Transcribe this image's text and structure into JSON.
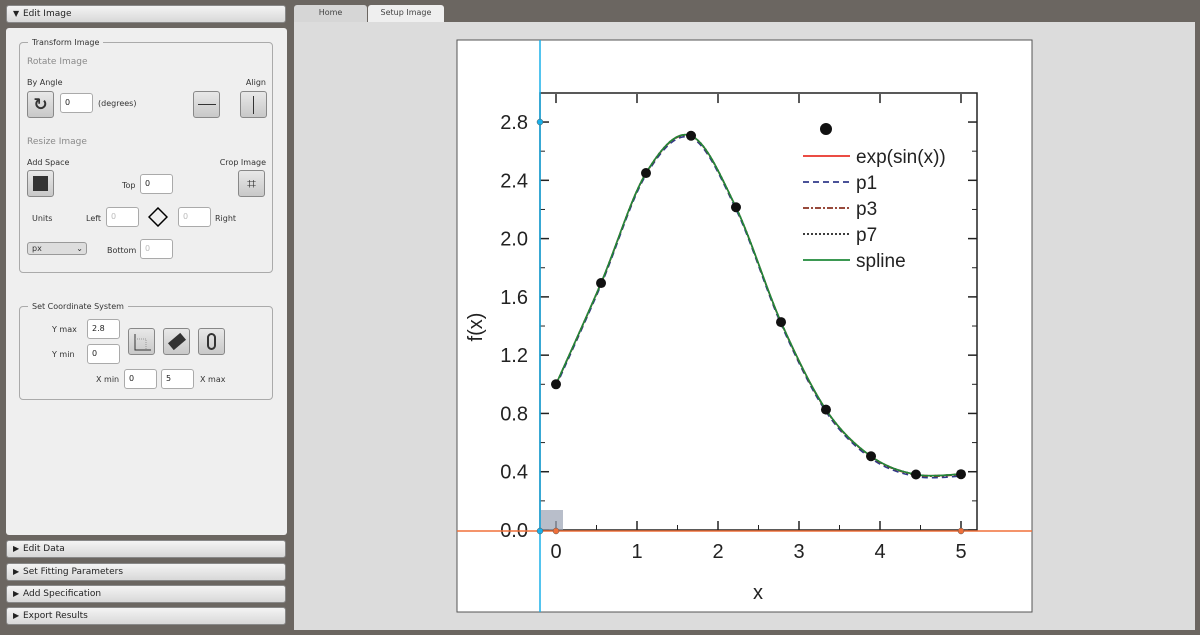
{
  "sidebar": {
    "sections": [
      {
        "label": "Edit Image",
        "expanded": true
      },
      {
        "label": "Edit Data",
        "expanded": false
      },
      {
        "label": "Set Fitting Parameters",
        "expanded": false
      },
      {
        "label": "Add Specification",
        "expanded": false
      },
      {
        "label": "Export Results",
        "expanded": false
      }
    ],
    "transform": {
      "title": "Transform Image",
      "rotate_title": "Rotate Image",
      "by_angle": "By Angle",
      "angle_value": "0",
      "degrees": "(degrees)",
      "align": "Align",
      "resize_title": "Resize Image",
      "add_space": "Add Space",
      "crop_image": "Crop Image",
      "top_label": "Top",
      "top_value": "0",
      "left_label": "Left",
      "left_value": "0",
      "right_label": "Right",
      "right_value": "0",
      "bottom_label": "Bottom",
      "bottom_value": "0",
      "units_label": "Units",
      "units_value": "px"
    },
    "coords": {
      "title": "Set Coordinate System",
      "ymax_label": "Y max",
      "ymax_value": "2.8",
      "ymin_label": "Y min",
      "ymin_value": "0",
      "xmin_label": "X min",
      "xmin_value": "0",
      "xmax_label": "X max",
      "xmax_value": "5"
    }
  },
  "tabs": [
    {
      "label": "Home",
      "active": false
    },
    {
      "label": "Setup Image",
      "active": true
    }
  ],
  "colors": {
    "y_axis_marker": "#1ab0ea",
    "x_axis_marker": "#f0703a"
  },
  "chart_data": {
    "type": "line",
    "xlabel": "x",
    "ylabel": "f(x)",
    "xlim": [
      -0.2,
      5.2
    ],
    "ylim": [
      0,
      2.8
    ],
    "xticks": [
      "0",
      "1",
      "2",
      "3",
      "4",
      "5"
    ],
    "yticks": [
      "0.0",
      "0.4",
      "0.8",
      "1.2",
      "1.6",
      "2.0",
      "2.4",
      "2.8"
    ],
    "legend_position": "top-right",
    "points": {
      "x": [
        0,
        0.556,
        1.111,
        1.667,
        2.222,
        2.778,
        3.333,
        3.889,
        4.444,
        5.0
      ],
      "y": [
        1.0,
        1.695,
        2.45,
        2.706,
        2.215,
        1.427,
        0.826,
        0.506,
        0.381,
        0.383
      ]
    },
    "series": [
      {
        "name": "exp(sin(x))",
        "color": "#e8322a",
        "dash": ""
      },
      {
        "name": "p1",
        "color": "#303a8a",
        "dash": "6,4"
      },
      {
        "name": "p3",
        "color": "#8a3020",
        "dash": "6,2,2,2"
      },
      {
        "name": "p7",
        "color": "#222222",
        "dash": "2,2"
      },
      {
        "name": "spline",
        "color": "#1f8a3a",
        "dash": ""
      }
    ]
  }
}
